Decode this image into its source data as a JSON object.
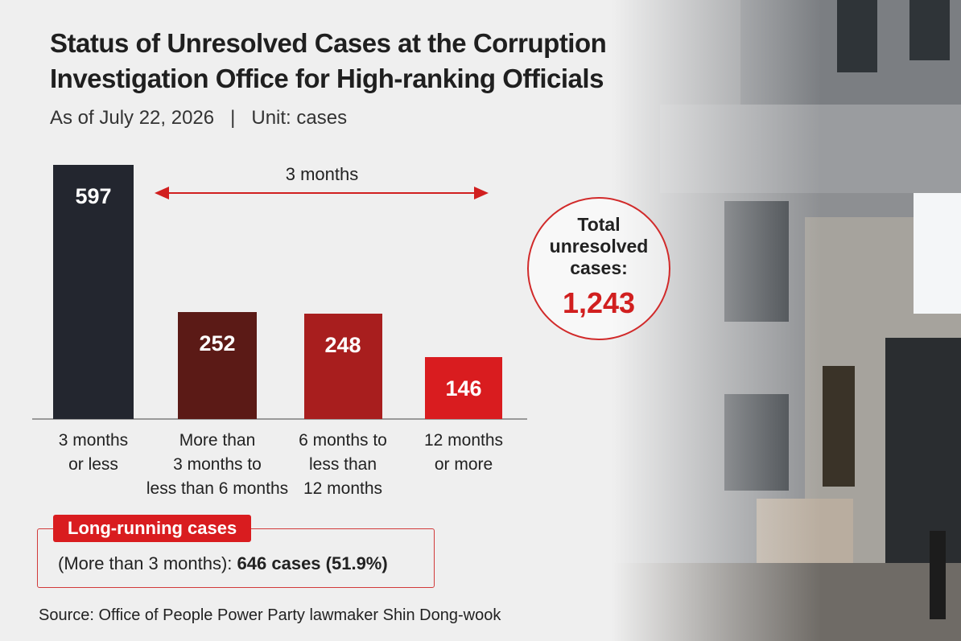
{
  "chart_data": {
    "type": "bar",
    "title": "Status of Unresolved Cases at the Corruption Investigation Office for High-ranking Officials",
    "subtitle": "As of July 22, 2026   |   Unit: cases",
    "categories": [
      "3 months\nor less",
      "More than\n3 months to\nless than 6 months",
      "6 months to\nless than\n12 months",
      "12 months\nor more"
    ],
    "values": [
      597,
      252,
      248,
      146
    ],
    "colors": [
      "#23262f",
      "#5b1a16",
      "#a81e1e",
      "#d91c1f"
    ],
    "annotation": "3 months",
    "total": {
      "label": "Total\nunresolved\ncases:",
      "value": "1,243"
    },
    "long_running": {
      "title": "Long-running cases",
      "text": "(More than 3 months): ",
      "highlight": "646 cases (51.9%)"
    },
    "source": "Source: Office of People Power Party lawmaker Shin Dong-wook"
  }
}
